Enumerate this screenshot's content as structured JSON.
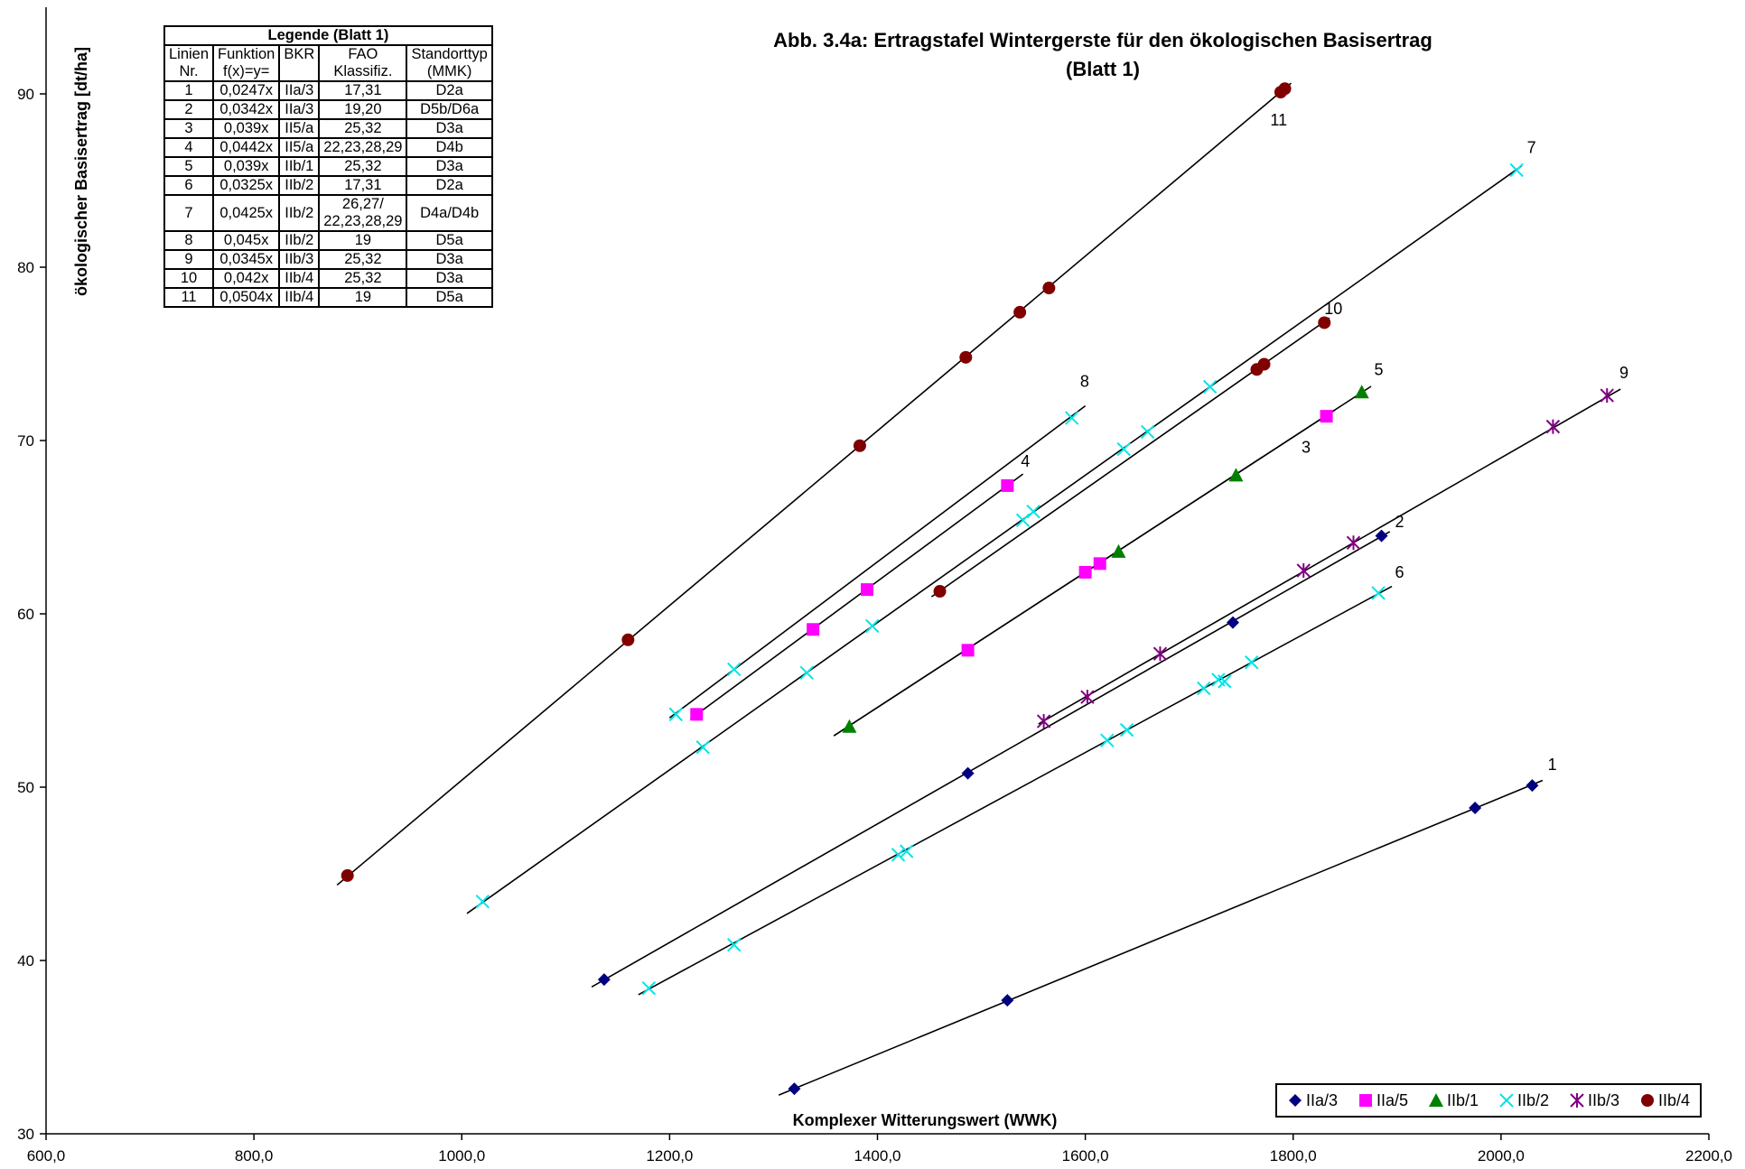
{
  "chart_data": {
    "type": "scatter",
    "title": "Abb. 3.4a: Ertragstafel Wintergerste für den ökologischen Basisertrag",
    "subtitle": "(Blatt 1)",
    "xlabel": "Komplexer Witterungswert (WWK)",
    "ylabel": "ökologischer Basisertrag [dt/ha]",
    "xlim": [
      600,
      2200
    ],
    "ylim": [
      30,
      95
    ],
    "x_ticks": [
      "600,0",
      "800,0",
      "1000,0",
      "1200,0",
      "1400,0",
      "1600,0",
      "1800,0",
      "2000,0",
      "2200,0"
    ],
    "y_ticks": [
      "30",
      "40",
      "50",
      "60",
      "70",
      "80",
      "90"
    ],
    "grid": false,
    "legend_position": "bottom-right",
    "series": [
      {
        "name": "IIa/3",
        "marker": "diamond",
        "color": "#000080",
        "points": [
          [
            1320,
            32.6
          ],
          [
            1525,
            37.7
          ],
          [
            1975,
            48.8
          ],
          [
            2030,
            50.1
          ],
          [
            1137,
            38.9
          ],
          [
            1487,
            50.8
          ],
          [
            1742,
            59.5
          ],
          [
            1885,
            64.5
          ]
        ]
      },
      {
        "name": "IIa/5",
        "marker": "square",
        "color": "#ff00ff",
        "points": [
          [
            1226,
            54.2
          ],
          [
            1338,
            59.1
          ],
          [
            1390,
            61.4
          ],
          [
            1525,
            67.4
          ],
          [
            1487,
            57.9
          ],
          [
            1600,
            62.4
          ],
          [
            1614,
            62.9
          ],
          [
            1832,
            71.4
          ]
        ]
      },
      {
        "name": "IIb/1",
        "marker": "triangle",
        "color": "#008000",
        "points": [
          [
            1373,
            53.5
          ],
          [
            1632,
            63.6
          ],
          [
            1745,
            68.0
          ],
          [
            1866,
            72.8
          ]
        ]
      },
      {
        "name": "IIb/2",
        "marker": "x",
        "color": "#00e5e5",
        "points": [
          [
            1020,
            43.4
          ],
          [
            1180,
            38.4
          ],
          [
            1206,
            54.2
          ],
          [
            1232,
            52.3
          ],
          [
            1262,
            40.9
          ],
          [
            1262,
            56.8
          ],
          [
            1332,
            56.6
          ],
          [
            1395,
            59.3
          ],
          [
            1420,
            46.1
          ],
          [
            1428,
            46.3
          ],
          [
            1540,
            65.4
          ],
          [
            1550,
            65.9
          ],
          [
            1587,
            71.3
          ],
          [
            1621,
            52.7
          ],
          [
            1637,
            69.5
          ],
          [
            1640,
            53.3
          ],
          [
            1660,
            70.5
          ],
          [
            1714,
            55.7
          ],
          [
            1720,
            73.1
          ],
          [
            1728,
            56.2
          ],
          [
            1734,
            56.1
          ],
          [
            1760,
            57.2
          ],
          [
            1882,
            61.2
          ],
          [
            2015,
            85.6
          ]
        ]
      },
      {
        "name": "IIb/3",
        "marker": "asterisk",
        "color": "#800080",
        "points": [
          [
            1560,
            53.8
          ],
          [
            1602,
            55.2
          ],
          [
            1672,
            57.7
          ],
          [
            1810,
            62.5
          ],
          [
            1858,
            64.1
          ],
          [
            2050,
            70.8
          ],
          [
            2102,
            72.6
          ]
        ]
      },
      {
        "name": "IIb/4",
        "marker": "circle",
        "color": "#800000",
        "points": [
          [
            890,
            44.9
          ],
          [
            1160,
            58.5
          ],
          [
            1383,
            69.7
          ],
          [
            1485,
            74.8
          ],
          [
            1537,
            77.4
          ],
          [
            1565,
            78.8
          ],
          [
            1788,
            90.1
          ],
          [
            1792,
            90.3
          ],
          [
            1460,
            61.3
          ],
          [
            1765,
            74.1
          ],
          [
            1772,
            74.4
          ],
          [
            1830,
            76.8
          ]
        ]
      }
    ],
    "lines": [
      {
        "label": "1",
        "slope": 0.0247,
        "x_range": [
          1305,
          2040
        ]
      },
      {
        "label": "2",
        "slope": 0.0342,
        "x_range": [
          1125,
          1893
        ]
      },
      {
        "label": "3",
        "slope": 0.039,
        "x_range": [
          1358,
          1840
        ]
      },
      {
        "label": "4",
        "slope": 0.0442,
        "x_range": [
          1220,
          1540
        ]
      },
      {
        "label": "5",
        "slope": 0.039,
        "x_range": [
          1358,
          1875
        ]
      },
      {
        "label": "6",
        "slope": 0.0325,
        "x_range": [
          1170,
          1895
        ]
      },
      {
        "label": "7",
        "slope": 0.0425,
        "x_range": [
          1005,
          2020
        ]
      },
      {
        "label": "8",
        "slope": 0.045,
        "x_range": [
          1200,
          1600
        ]
      },
      {
        "label": "9",
        "slope": 0.0345,
        "x_range": [
          1555,
          2115
        ]
      },
      {
        "label": "10",
        "slope": 0.042,
        "x_range": [
          1452,
          1835
        ]
      },
      {
        "label": "11",
        "slope": 0.0504,
        "x_range": [
          880,
          1798
        ]
      }
    ],
    "annotations": [
      {
        "text": "1",
        "x": 2045,
        "y": 51.3
      },
      {
        "text": "2",
        "x": 1898,
        "y": 65.3
      },
      {
        "text": "3",
        "x": 1808,
        "y": 69.6
      },
      {
        "text": "4",
        "x": 1538,
        "y": 68.8
      },
      {
        "text": "5",
        "x": 1878,
        "y": 74.1
      },
      {
        "text": "6",
        "x": 1898,
        "y": 62.4
      },
      {
        "text": "7",
        "x": 2025,
        "y": 86.9
      },
      {
        "text": "8",
        "x": 1595,
        "y": 73.4
      },
      {
        "text": "9",
        "x": 2114,
        "y": 73.9
      },
      {
        "text": "10",
        "x": 1830,
        "y": 77.6
      },
      {
        "text": "11",
        "x": 1778,
        "y": 88.5
      }
    ]
  },
  "legend_table": {
    "caption": "Legende (Blatt 1)",
    "headers": [
      [
        "Linien",
        "Nr."
      ],
      [
        "Funktion",
        "f(x)=y="
      ],
      [
        "BKR",
        ""
      ],
      [
        "FAO",
        "Klassifiz."
      ],
      [
        "Standorttyp",
        "(MMK)"
      ]
    ],
    "rows": [
      [
        "1",
        "0,0247x",
        "IIa/3",
        "17,31",
        "D2a"
      ],
      [
        "2",
        "0,0342x",
        "IIa/3",
        "19,20",
        "D5b/D6a"
      ],
      [
        "3",
        "0,039x",
        "II5/a",
        "25,32",
        "D3a"
      ],
      [
        "4",
        "0,0442x",
        "II5/a",
        "22,23,28,29",
        "D4b"
      ],
      [
        "5",
        "0,039x",
        "IIb/1",
        "25,32",
        "D3a"
      ],
      [
        "6",
        "0,0325x",
        "IIb/2",
        "17,31",
        "D2a"
      ],
      [
        "7",
        "0,0425x",
        "IIb/2",
        "26,27/\n22,23,28,29",
        "D4a/D4b"
      ],
      [
        "8",
        "0,045x",
        "IIb/2",
        "19",
        "D5a"
      ],
      [
        "9",
        "0,0345x",
        "IIb/3",
        "25,32",
        "D3a"
      ],
      [
        "10",
        "0,042x",
        "IIb/4",
        "25,32",
        "D3a"
      ],
      [
        "11",
        "0,0504x",
        "IIb/4",
        "19",
        "D5a"
      ]
    ]
  }
}
